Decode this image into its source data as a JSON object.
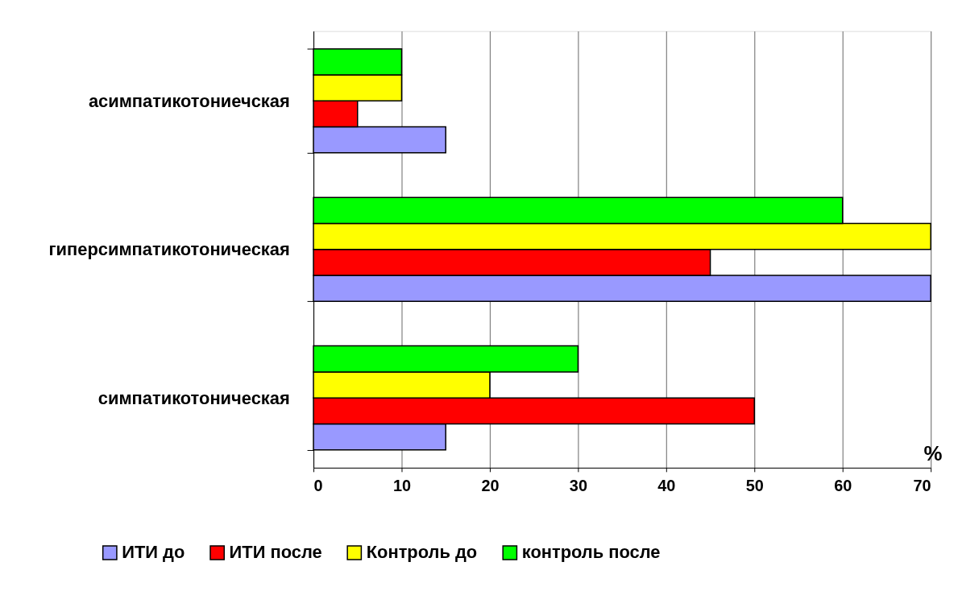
{
  "chart_data": {
    "type": "bar",
    "orientation": "horizontal",
    "xlabel": "%",
    "categories": [
      "асимпатикотониечская",
      "гиперсимпатикотоническая",
      "симпатикотоническая"
    ],
    "series": [
      {
        "name": "ИТИ до",
        "color": "#9999ff",
        "values": [
          15,
          70,
          15
        ]
      },
      {
        "name": "ИТИ после",
        "color": "#ff0000",
        "values": [
          5,
          45,
          50
        ]
      },
      {
        "name": "Контроль до",
        "color": "#ffff00",
        "values": [
          10,
          70,
          20
        ]
      },
      {
        "name": "контроль после",
        "color": "#00ff00",
        "values": [
          10,
          60,
          30
        ]
      }
    ],
    "xlim": [
      0,
      70
    ],
    "xticks": [
      0,
      10,
      20,
      30,
      40,
      50,
      60,
      70
    ],
    "grid": "x",
    "legend": "bottom"
  }
}
